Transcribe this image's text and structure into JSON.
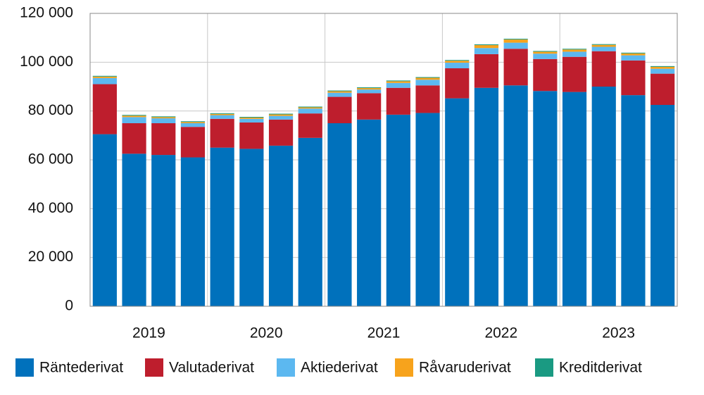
{
  "chart_data": {
    "type": "stacked_bar",
    "categories": [
      null,
      null,
      null,
      null,
      null,
      null,
      null,
      null,
      null,
      null,
      null,
      null,
      null,
      null,
      null,
      null,
      null,
      null,
      null,
      null
    ],
    "groups": [
      "2019",
      "2020",
      "2021",
      "2022",
      "2023"
    ],
    "series": [
      {
        "name": "Räntederivat",
        "color": "#0071bc",
        "values": [
          70500,
          62500,
          62000,
          61000,
          65000,
          64500,
          65800,
          69000,
          75000,
          76500,
          78500,
          79200,
          85200,
          89500,
          90500,
          88200,
          87800,
          90000,
          86500,
          82500
        ]
      },
      {
        "name": "Valutaderivat",
        "color": "#be1e2d",
        "values": [
          20500,
          12500,
          13000,
          12500,
          11800,
          10800,
          10700,
          10000,
          10800,
          10800,
          11000,
          11300,
          12300,
          13800,
          15000,
          13100,
          14400,
          14500,
          14200,
          12800
        ]
      },
      {
        "name": "Aktiederivat",
        "color": "#5cb8f0",
        "values": [
          2500,
          2500,
          2000,
          1500,
          1500,
          1500,
          1500,
          2000,
          1700,
          1500,
          2000,
          2300,
          2300,
          2500,
          2500,
          2200,
          2100,
          1800,
          2100,
          2000
        ]
      },
      {
        "name": "Råvaruderivat",
        "color": "#f7a31c",
        "values": [
          600,
          600,
          500,
          500,
          500,
          500,
          600,
          500,
          600,
          600,
          700,
          800,
          800,
          1200,
          1300,
          800,
          900,
          800,
          800,
          800
        ]
      },
      {
        "name": "Kreditderivat",
        "color": "#1a9a82",
        "values": [
          300,
          300,
          300,
          300,
          300,
          300,
          300,
          300,
          300,
          300,
          300,
          300,
          300,
          300,
          300,
          300,
          300,
          300,
          300,
          300
        ]
      }
    ],
    "ylim": [
      0,
      120000
    ],
    "yticks": [
      0,
      {
        "value": 20000,
        "label": "20 000"
      },
      {
        "value": 40000,
        "label": "40 000"
      },
      {
        "value": 60000,
        "label": "60 000"
      },
      {
        "value": 80000,
        "label": "80 000"
      },
      {
        "value": 100000,
        "label": "100 000"
      },
      {
        "value": 120000,
        "label": "120 000"
      }
    ],
    "grid": true
  }
}
